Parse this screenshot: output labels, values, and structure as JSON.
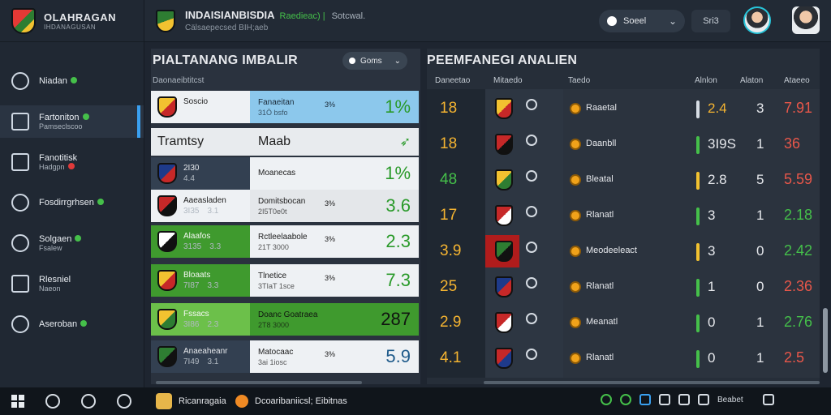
{
  "brand": {
    "title": "OLAHRAGAN",
    "subtitle": "IHDANAGUSAN"
  },
  "topbar": {
    "title": "INDAISIANBISDIA",
    "green_tag": "Raedieac) |",
    "status": "Sotcwal.",
    "subtitle": "Cälsaepecsed BIH;aeb",
    "search_label": "Soeel",
    "mini_label": "Sri3"
  },
  "sidebar": {
    "items": [
      {
        "label": "Niadan",
        "sub": "",
        "icon": "clock-icon"
      },
      {
        "label": "Fartoniton",
        "sub": "Pamseclscoo",
        "icon": "chart-icon"
      },
      {
        "label": "Fanotitisk",
        "sub": "Hadgpn",
        "icon": "file-icon"
      },
      {
        "label": "Fosdirrgrhsen",
        "sub": "",
        "icon": "hat-icon"
      },
      {
        "label": "Solgaen",
        "sub": "Fsalew",
        "icon": "chat-icon"
      },
      {
        "label": "Rlesniel",
        "sub": "Naeon",
        "icon": "globe-icon"
      },
      {
        "label": "Aseroban",
        "sub": "",
        "icon": "ball-icon"
      }
    ]
  },
  "left_panel": {
    "title": "PIALTANANG IMBALIR",
    "filter_label": "Goms",
    "sub_header": "Daonaeibtitcst",
    "header_row": {
      "col_a": "Tramtsy",
      "col_b": "Maab",
      "icon": "leaf-icon"
    },
    "rows": [
      {
        "team": "Soscio",
        "n1": "",
        "n2": "",
        "name": "Fanaeitan",
        "name2": "31Ö bsfo",
        "pct": "3%",
        "value": "1%",
        "bgA": "#eef1f4",
        "bgB": "#8cc8ec",
        "txtA": "#202020",
        "txtB": "#1a2a38",
        "valColor": "#2a9a2a",
        "crest": [
          "#f2c230",
          "#c62828"
        ]
      },
      {
        "team": "2I30",
        "n1": "4.4",
        "n2": "",
        "name": "Moanecas",
        "name2": "",
        "pct": "",
        "value": "1%",
        "bgA": "#334051",
        "bgB": "#eef1f4",
        "txtA": "#e6e8ec",
        "txtB": "#202020",
        "valColor": "#2a9a2a",
        "crest": [
          "#1e3a8a",
          "#c62828"
        ]
      },
      {
        "team": "Aaeasladen",
        "n1": "3I35",
        "n2": "3.1",
        "name": "Domitsbocan",
        "name2": "2I5T0e0t",
        "pct": "3%",
        "value": "3.6",
        "bgA": "#eef1f4",
        "bgB": "#e4e7ea",
        "txtA": "#202020",
        "txtB": "#202020",
        "valColor": "#2a9a2a",
        "crest": [
          "#c62828",
          "#111111"
        ]
      },
      {
        "team": "Alaafos",
        "n1": "3135",
        "n2": "3.3",
        "name": "Rctleelaabole",
        "name2": "21T 3000",
        "pct": "3%",
        "value": "2.3",
        "bgA": "#3f9a2e",
        "bgB": "#eef1f4",
        "txtA": "#f4f7f2",
        "txtB": "#202020",
        "valColor": "#2a9a2a",
        "crest": [
          "#ffffff",
          "#111111"
        ]
      },
      {
        "team": "Bloaats",
        "n1": "7I87",
        "n2": "3.3",
        "name": "Tlnetice",
        "name2": "3TIaT 1sce",
        "pct": "3%",
        "value": "7.3",
        "bgA": "#3f9a2e",
        "bgB": "#eef1f4",
        "txtA": "#f4f7f2",
        "txtB": "#202020",
        "valColor": "#2a9a2a",
        "crest": [
          "#f2c230",
          "#c62828"
        ]
      },
      {
        "team": "Fssacs",
        "n1": "3I86",
        "n2": "2.3",
        "name": "Doanc Goatraea",
        "name2": "2T8 3000",
        "pct": "",
        "value": "287",
        "bgA": "#6cc04a",
        "bgB": "#3f9a2e",
        "txtA": "#f4f7f2",
        "txtB": "#101510",
        "valColor": "#101510",
        "crest": [
          "#f2c230",
          "#2e7d32"
        ]
      },
      {
        "team": "Anaeaheanr",
        "n1": "7I49",
        "n2": "3.1",
        "name": "Matocaac",
        "name2": "3ai 1iosc",
        "pct": "3%",
        "value": "5.9",
        "bgA": "#334051",
        "bgB": "#eef1f4",
        "txtA": "#e6e8ec",
        "txtB": "#202020",
        "valColor": "#1e5a8a",
        "crest": [
          "#2e7d32",
          "#111111"
        ]
      }
    ]
  },
  "right_panel": {
    "title": "PEEMFANEGI ANALIEN",
    "headers": [
      "Daneetao",
      "Mitaedo",
      "Taedo",
      "Alnlon",
      "Alaton",
      "Ataeeo"
    ],
    "rows": [
      {
        "rank": "18",
        "rankColor": "#f5b431",
        "name": "Raaetal",
        "bar": "#d7dde4",
        "v1": "2.4",
        "v1Color": "#f5b431",
        "v2": "3",
        "v3": "7.91",
        "v3Color": "#e8574a",
        "crest": [
          "#f2c230",
          "#c62828"
        ]
      },
      {
        "rank": "18",
        "rankColor": "#f5b431",
        "name": "Daanbll",
        "bar": "#45c04a",
        "v1": "3I9S",
        "v1Color": "#e6e8ec",
        "v2": "1",
        "v3": "36",
        "v3Color": "#e8574a",
        "crest": [
          "#c62828",
          "#111111"
        ]
      },
      {
        "rank": "48",
        "rankColor": "#45c04a",
        "name": "Bleatal",
        "bar": "#f2c230",
        "v1": "2.8",
        "v1Color": "#e6e8ec",
        "v2": "5",
        "v3": "5.59",
        "v3Color": "#e8574a",
        "crest": [
          "#f2c230",
          "#2e7d32"
        ]
      },
      {
        "rank": "17",
        "rankColor": "#f5b431",
        "name": "Rlanatl",
        "bar": "#45c04a",
        "v1": "3",
        "v1Color": "#e6e8ec",
        "v2": "1",
        "v3": "2.18",
        "v3Color": "#45c04a",
        "crest": [
          "#c62828",
          "#ffffff"
        ]
      },
      {
        "rank": "3.9",
        "rankColor": "#f5b431",
        "name": "Meodeeleact",
        "bar": "#f2c230",
        "v1": "3",
        "v1Color": "#e6e8ec",
        "v2": "0",
        "v3": "2.42",
        "v3Color": "#45c04a",
        "crest": [
          "#2e7d32",
          "#111111"
        ]
      },
      {
        "rank": "25",
        "rankColor": "#f5b431",
        "name": "Rlanatl",
        "bar": "#45c04a",
        "v1": "1",
        "v1Color": "#e6e8ec",
        "v2": "0",
        "v3": "2.36",
        "v3Color": "#e8574a",
        "crest": [
          "#1e3a8a",
          "#c62828"
        ]
      },
      {
        "rank": "2.9",
        "rankColor": "#f5b431",
        "name": "Meanatl",
        "bar": "#45c04a",
        "v1": "0",
        "v1Color": "#e6e8ec",
        "v2": "1",
        "v3": "2.76",
        "v3Color": "#45c04a",
        "crest": [
          "#c62828",
          "#ffffff"
        ]
      },
      {
        "rank": "4.1",
        "rankColor": "#f5b431",
        "name": "Rlanatl",
        "bar": "#45c04a",
        "v1": "0",
        "v1Color": "#e6e8ec",
        "v2": "1",
        "v3": "2.5",
        "v3Color": "#e8574a",
        "crest": [
          "#c62828",
          "#1e3a8a"
        ]
      }
    ]
  },
  "taskbar": {
    "app1_label": "Ricanragaia",
    "app2_label": "Dcoaribaniicsl; Eibitnas",
    "tray_label": "Beabet"
  },
  "colors": {
    "accent": "#3aa0f0",
    "green": "#45c04a",
    "amber": "#f5b431",
    "red": "#e8574a"
  }
}
